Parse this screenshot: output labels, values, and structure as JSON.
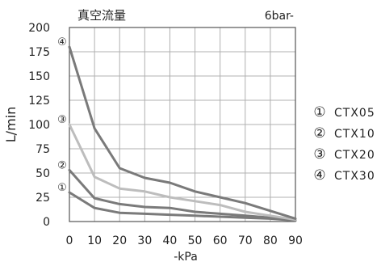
{
  "chart_data": {
    "type": "line",
    "title": "真空流量",
    "pressure_label": "6bar-",
    "xlabel": "-kPa",
    "ylabel": "L/min",
    "xlim": [
      0,
      90
    ],
    "ylim": [
      0,
      200
    ],
    "x_ticks": [
      0,
      10,
      20,
      30,
      40,
      50,
      60,
      70,
      80,
      90
    ],
    "y_ticks": [
      0,
      25,
      50,
      75,
      100,
      125,
      150,
      175,
      200
    ],
    "grid": true,
    "legend_position": "right",
    "x": [
      0,
      10,
      20,
      30,
      40,
      50,
      60,
      70,
      80,
      90
    ],
    "series": [
      {
        "marker": "①",
        "name": "CTX05",
        "color": "#7a7a7a",
        "values": [
          30,
          14,
          9,
          8,
          7,
          6,
          5,
          4,
          3,
          1
        ]
      },
      {
        "marker": "②",
        "name": "CTX10",
        "color": "#7a7a7a",
        "values": [
          53,
          24,
          18,
          15,
          14,
          10,
          8,
          6,
          4,
          1
        ]
      },
      {
        "marker": "③",
        "name": "CTX20",
        "color": "#bdbdbd",
        "values": [
          100,
          46,
          34,
          31,
          25,
          21,
          17,
          10,
          6,
          2
        ]
      },
      {
        "marker": "④",
        "name": "CTX30",
        "color": "#7a7a7a",
        "values": [
          180,
          96,
          55,
          45,
          40,
          31,
          25,
          19,
          11,
          3
        ]
      }
    ]
  }
}
